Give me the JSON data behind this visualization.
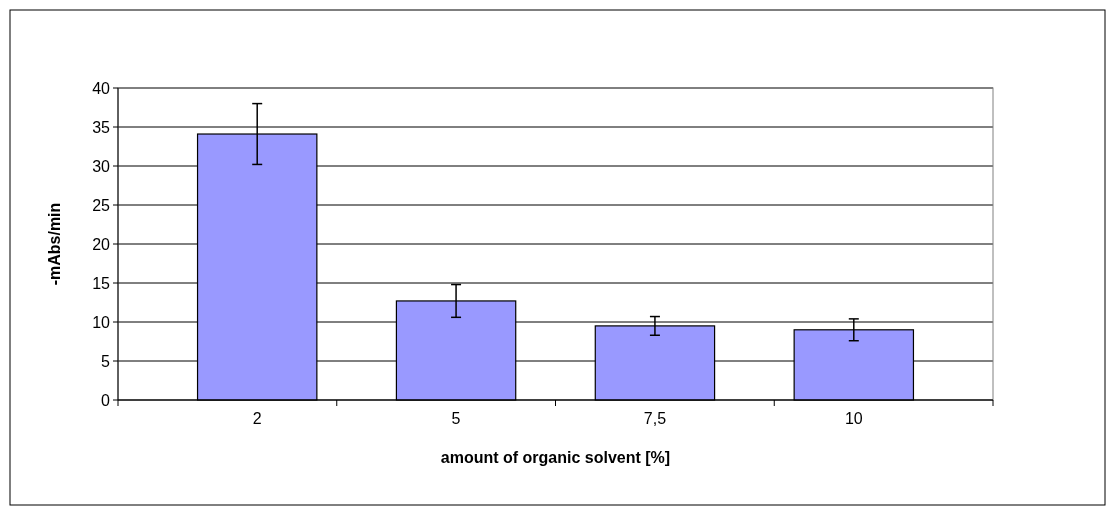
{
  "chart_data": {
    "type": "bar",
    "xlabel": "amount of organic solvent [%]",
    "ylabel": "-mAbs/min",
    "categories": [
      "2",
      "5",
      "7,5",
      "10"
    ],
    "values": [
      34.1,
      12.7,
      9.5,
      9.0
    ],
    "errors": [
      3.9,
      2.1,
      1.2,
      1.4
    ],
    "color": "#9999ff",
    "ylim": [
      0,
      40
    ],
    "yticks": [
      0,
      5,
      10,
      15,
      20,
      25,
      30,
      35,
      40
    ],
    "grid": "y"
  }
}
